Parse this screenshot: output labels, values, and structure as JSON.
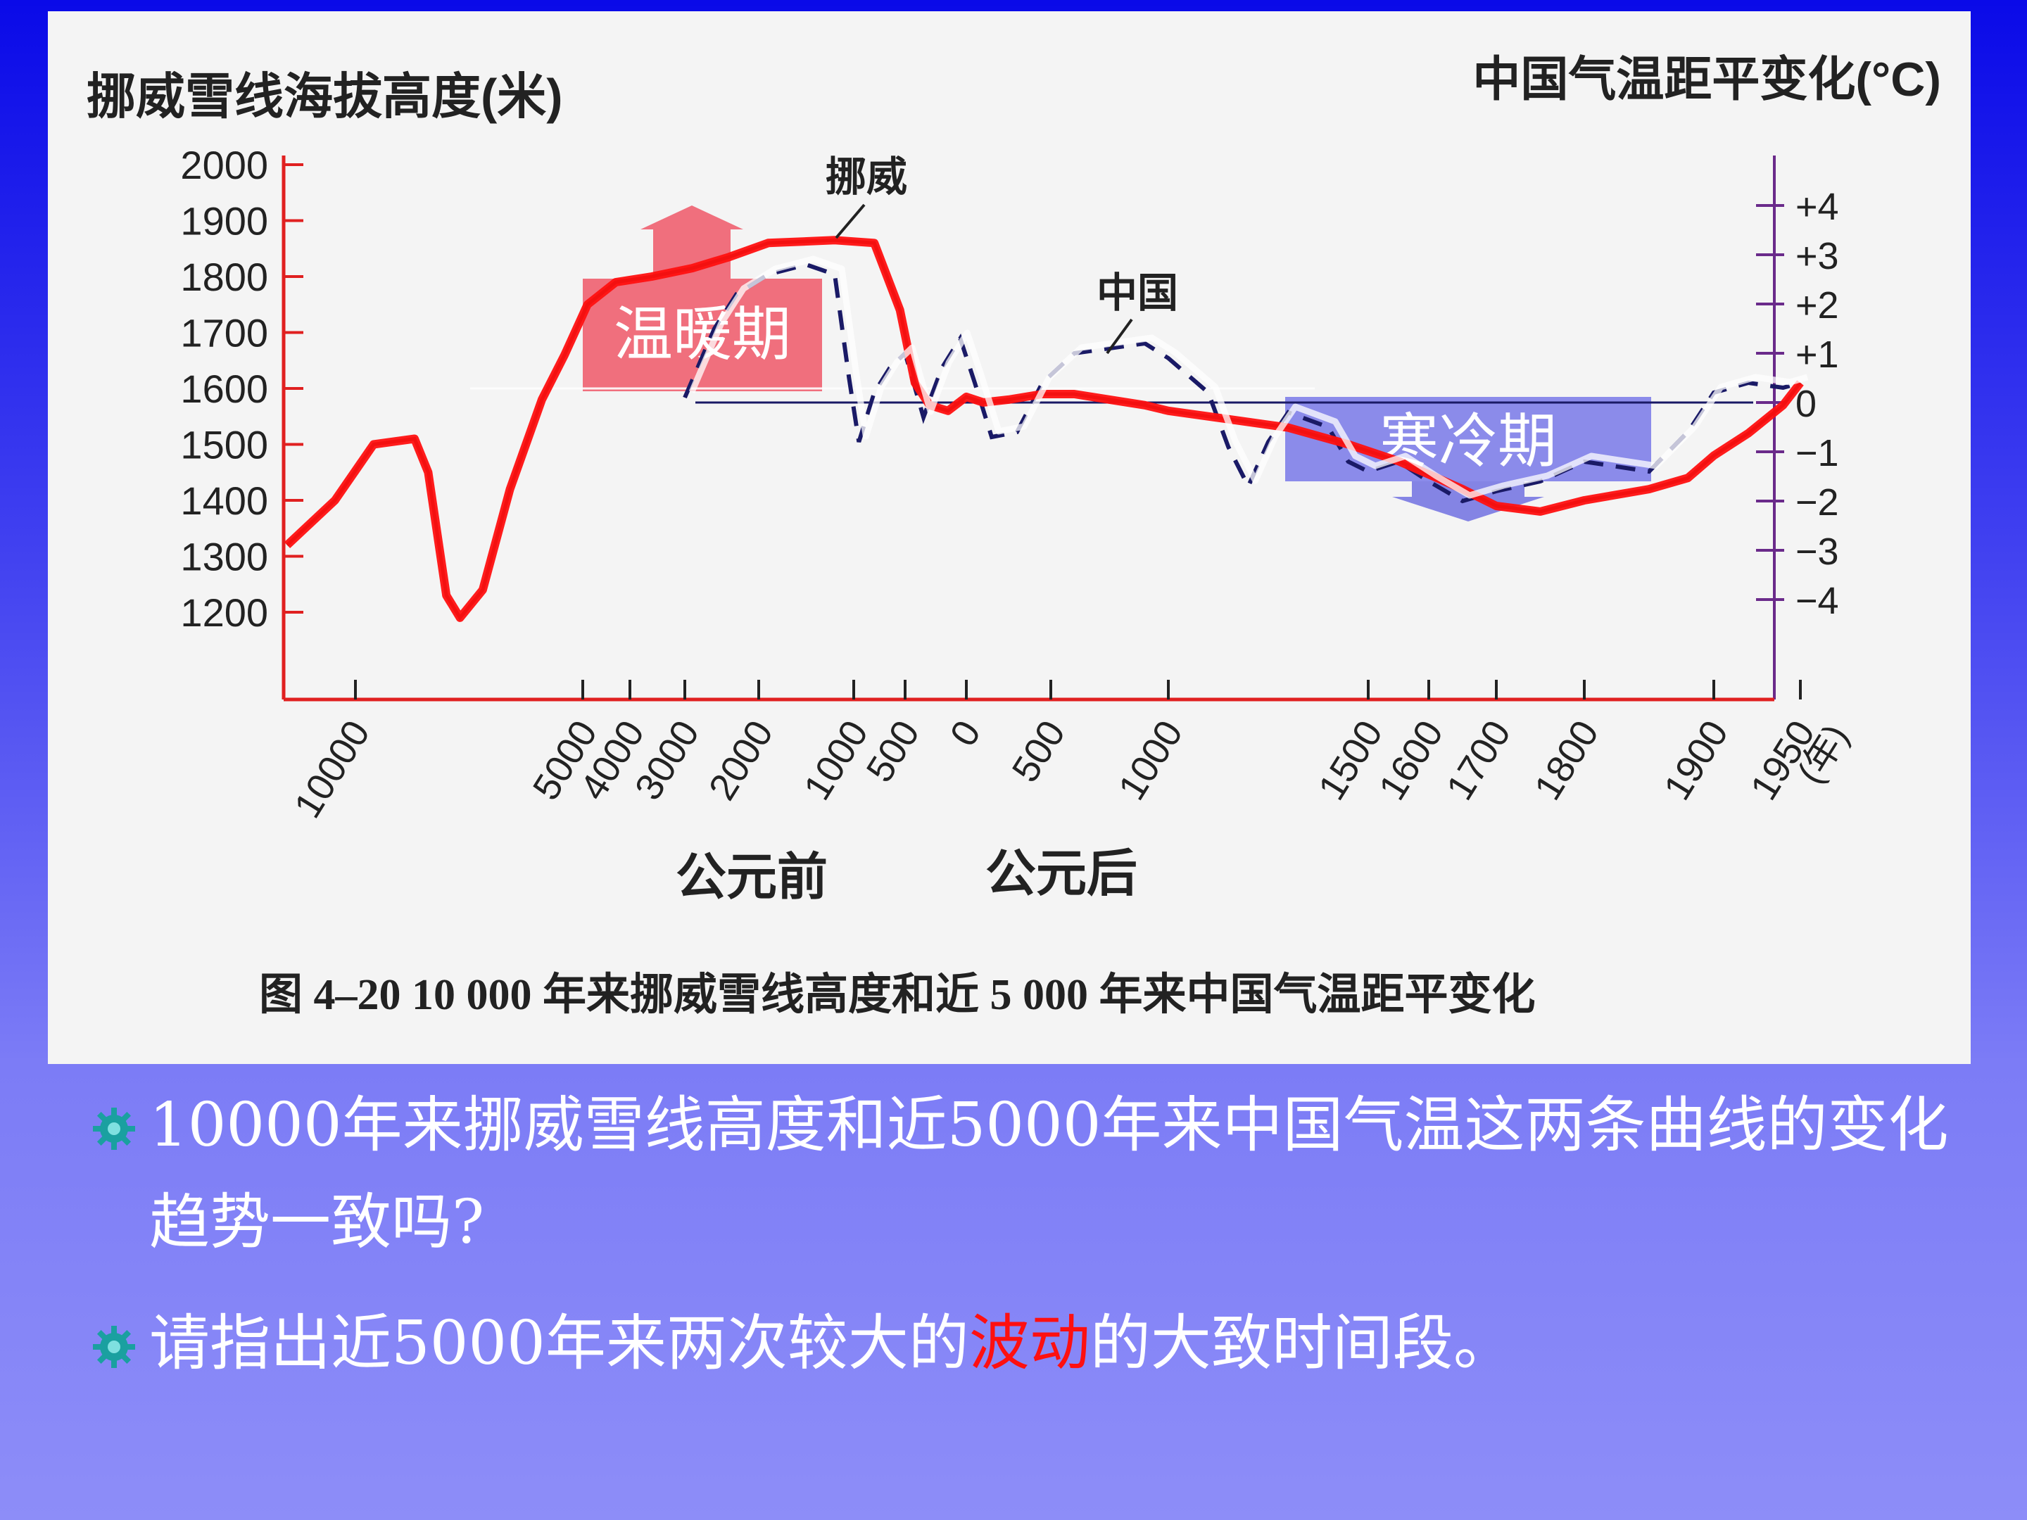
{
  "colors": {
    "slide_bg_top": "#0a0ae8",
    "slide_bg_bottom": "#8d8df8",
    "axis_left": "#e02020",
    "axis_right": "#6a2a8a",
    "norway_curve": "#1a1a1a",
    "china_curve": "#1a1a66",
    "annotation_red": "#ff1010",
    "warm_box": "#f06070",
    "cold_box": "#7878e8",
    "highlight_text": "#ff1010"
  },
  "chart_data": {
    "type": "line",
    "left_axis": {
      "title": "挪威雪线海拔高度(米)",
      "ticks": [
        2000,
        1900,
        1800,
        1700,
        1600,
        1500,
        1400,
        1300,
        1200
      ],
      "tick_labels": [
        "2000",
        "1900",
        "1800",
        "1700",
        "1600",
        "1500",
        "1400",
        "1300",
        "1200"
      ],
      "range": [
        1060,
        2000
      ]
    },
    "right_axis": {
      "title": "中国气温距平变化(°C)",
      "ticks": [
        4,
        3,
        2,
        1,
        0,
        -1,
        -2,
        -3,
        -4
      ],
      "tick_labels": [
        "+4",
        "+3",
        "+2",
        "+1",
        "0",
        "−1",
        "−2",
        "−3",
        "−4"
      ]
    },
    "x_axis": {
      "ticks": [
        {
          "label": "10000",
          "year": -10000
        },
        {
          "label": "5000",
          "year": -5000
        },
        {
          "label": "4000",
          "year": -4000
        },
        {
          "label": "3000",
          "year": -3000
        },
        {
          "label": "2000",
          "year": -2000
        },
        {
          "label": "1000",
          "year": -1000
        },
        {
          "label": "500",
          "year": -500
        },
        {
          "label": "0",
          "year": 0
        },
        {
          "label": "500",
          "year": 500
        },
        {
          "label": "1000",
          "year": 1000
        },
        {
          "label": "1500",
          "year": 1500
        },
        {
          "label": "1600",
          "year": 1600
        },
        {
          "label": "1700",
          "year": 1700
        },
        {
          "label": "1800",
          "year": 1800
        },
        {
          "label": "1900",
          "year": 1900
        },
        {
          "label": "1950",
          "year": 1950
        }
      ],
      "end_unit": "(年)",
      "era_bce": "公元前",
      "era_ce": "公元后"
    },
    "series": [
      {
        "name": "挪威",
        "axis": "left",
        "points": [
          [
            -11000,
            1320
          ],
          [
            -10300,
            1400
          ],
          [
            -9600,
            1500
          ],
          [
            -8700,
            1510
          ],
          [
            -8400,
            1450
          ],
          [
            -8000,
            1230
          ],
          [
            -7700,
            1190
          ],
          [
            -7200,
            1240
          ],
          [
            -6600,
            1420
          ],
          [
            -5900,
            1580
          ],
          [
            -5400,
            1660
          ],
          [
            -4900,
            1750
          ],
          [
            -4300,
            1790
          ],
          [
            -3600,
            1800
          ],
          [
            -2900,
            1815
          ],
          [
            -2400,
            1835
          ],
          [
            -1900,
            1860
          ],
          [
            -1200,
            1865
          ],
          [
            -800,
            1860
          ],
          [
            -550,
            1740
          ],
          [
            -420,
            1610
          ],
          [
            -300,
            1570
          ],
          [
            -150,
            1560
          ],
          [
            0,
            1585
          ],
          [
            100,
            1575
          ],
          [
            250,
            1580
          ],
          [
            450,
            1590
          ],
          [
            600,
            1590
          ],
          [
            750,
            1580
          ],
          [
            900,
            1570
          ],
          [
            1000,
            1560
          ],
          [
            1150,
            1545
          ],
          [
            1300,
            1530
          ],
          [
            1450,
            1500
          ],
          [
            1550,
            1470
          ],
          [
            1650,
            1420
          ],
          [
            1700,
            1390
          ],
          [
            1750,
            1380
          ],
          [
            1800,
            1400
          ],
          [
            1850,
            1420
          ],
          [
            1880,
            1440
          ],
          [
            1900,
            1480
          ],
          [
            1920,
            1520
          ],
          [
            1940,
            1570
          ],
          [
            1950,
            1610
          ]
        ]
      },
      {
        "name": "中国",
        "axis": "right",
        "points": [
          [
            -3000,
            0.1
          ],
          [
            -2600,
            1.5
          ],
          [
            -2300,
            2.2
          ],
          [
            -1900,
            2.6
          ],
          [
            -1500,
            2.8
          ],
          [
            -1200,
            2.6
          ],
          [
            -1050,
            0.5
          ],
          [
            -950,
            -0.8
          ],
          [
            -800,
            0.2
          ],
          [
            -650,
            0.7
          ],
          [
            -500,
            1.0
          ],
          [
            -350,
            -0.3
          ],
          [
            -200,
            0.7
          ],
          [
            -50,
            1.3
          ],
          [
            50,
            0.4
          ],
          [
            150,
            -0.7
          ],
          [
            300,
            -0.6
          ],
          [
            450,
            0.4
          ],
          [
            600,
            1.0
          ],
          [
            750,
            1.1
          ],
          [
            900,
            1.2
          ],
          [
            1000,
            0.9
          ],
          [
            1100,
            0.2
          ],
          [
            1150,
            -0.9
          ],
          [
            1200,
            -1.7
          ],
          [
            1250,
            -0.8
          ],
          [
            1300,
            -0.2
          ],
          [
            1400,
            -0.5
          ],
          [
            1450,
            -1.2
          ],
          [
            1500,
            -1.4
          ],
          [
            1550,
            -1.2
          ],
          [
            1600,
            -1.6
          ],
          [
            1650,
            -2.0
          ],
          [
            1700,
            -1.8
          ],
          [
            1750,
            -1.6
          ],
          [
            1800,
            -1.2
          ],
          [
            1850,
            -1.4
          ],
          [
            1880,
            -0.6
          ],
          [
            1900,
            0.2
          ],
          [
            1920,
            0.4
          ],
          [
            1940,
            0.3
          ],
          [
            1950,
            0.4
          ]
        ]
      }
    ],
    "annotations": {
      "warm_period": "温暖期",
      "cold_period": "寒冷期",
      "label_norway": "挪威",
      "label_china": "中国"
    },
    "caption": "图 4–20 10 000 年来挪威雪线高度和近 5 000 年来中国气温距平变化",
    "grid": false
  },
  "bullets": [
    {
      "before": "10000年来挪威雪线高度和近5000年来中国气温这两条曲线的变化趋势一致吗?",
      "highlight": "",
      "after": ""
    },
    {
      "before": "请指出近5000年来两次较大的",
      "highlight": "波动",
      "after": "的大致时间段。"
    }
  ]
}
